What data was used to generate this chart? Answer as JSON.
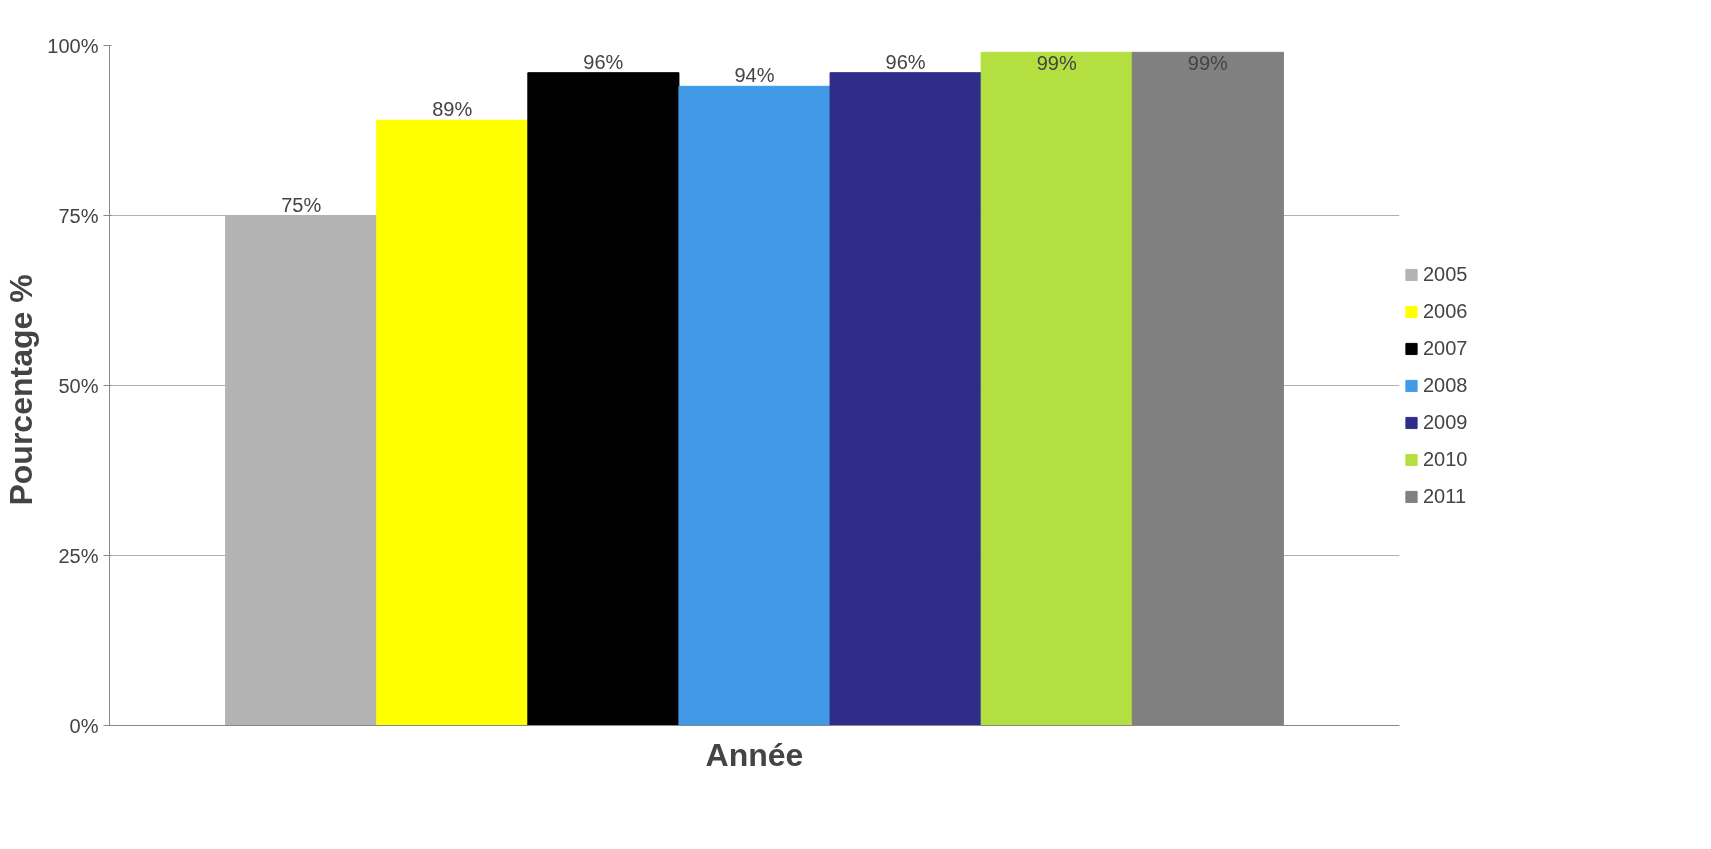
{
  "chart_data": {
    "type": "bar",
    "xlabel": "Année",
    "ylabel": "Pourcentage  %",
    "categories": [
      null
    ],
    "series": [
      {
        "name": "2005",
        "color": "#b3b3b3",
        "values": [
          75
        ],
        "value_labels": [
          "75%"
        ]
      },
      {
        "name": "2006",
        "color": "#ffff00",
        "values": [
          89
        ],
        "value_labels": [
          "89%"
        ]
      },
      {
        "name": "2007",
        "color": "#000000",
        "values": [
          96
        ],
        "value_labels": [
          "96%"
        ]
      },
      {
        "name": "2008",
        "color": "#4299e6",
        "values": [
          94
        ],
        "value_labels": [
          "94%"
        ]
      },
      {
        "name": "2009",
        "color": "#2e2e8a",
        "values": [
          96
        ],
        "value_labels": [
          "96%"
        ]
      },
      {
        "name": "2010",
        "color": "#b3e040",
        "values": [
          99
        ],
        "value_labels": [
          "99%"
        ]
      },
      {
        "name": "2011",
        "color": "#808080",
        "values": [
          99
        ],
        "value_labels": [
          "99%"
        ]
      }
    ],
    "ylim": [
      0,
      100
    ],
    "yticks": [
      {
        "value": 0,
        "label": "0%"
      },
      {
        "value": 25,
        "label": "25%"
      },
      {
        "value": 50,
        "label": "50%"
      },
      {
        "value": 75,
        "label": "75%"
      },
      {
        "value": 100,
        "label": "100%"
      }
    ],
    "grid": "y",
    "legend": "right"
  }
}
